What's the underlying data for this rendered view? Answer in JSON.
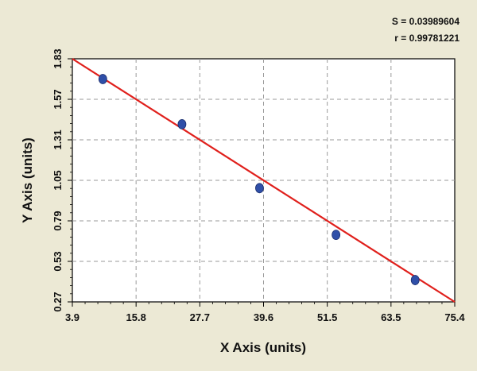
{
  "chart_data": {
    "type": "scatter",
    "title": "",
    "xlabel": "X Axis (units)",
    "ylabel": "Y Axis (units)",
    "xlim": [
      3.9,
      75.4
    ],
    "ylim": [
      0.27,
      1.83
    ],
    "x_ticks": [
      "3.9",
      "15.8",
      "27.7",
      "39.6",
      "51.5",
      "63.5",
      "75.4"
    ],
    "y_ticks": [
      "0.27",
      "0.53",
      "0.79",
      "1.05",
      "1.31",
      "1.57",
      "1.83"
    ],
    "grid": true,
    "points": [
      {
        "x": 9.6,
        "y": 1.7
      },
      {
        "x": 24.4,
        "y": 1.41
      },
      {
        "x": 38.9,
        "y": 1.0
      },
      {
        "x": 53.2,
        "y": 0.7
      },
      {
        "x": 68.0,
        "y": 0.41
      }
    ],
    "fit_line": {
      "x": [
        3.9,
        75.4
      ],
      "y": [
        1.83,
        0.27
      ]
    },
    "stats": {
      "s_text": "S = 0.03989604",
      "r_text": "r = 0.99781221"
    },
    "colors": {
      "background": "#ece9d5",
      "plot_area": "#ffffff",
      "point": "#2f4fa8",
      "fit_line": "#e0201c",
      "grid": "#9a9a9a"
    }
  }
}
